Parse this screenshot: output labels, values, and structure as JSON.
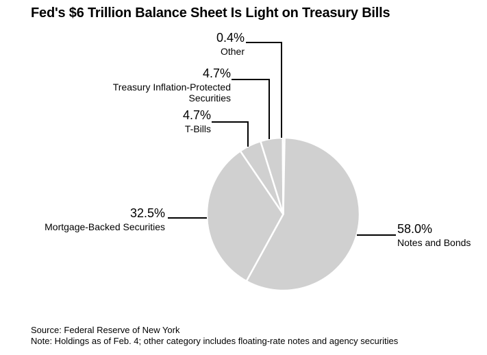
{
  "chart": {
    "title": "Fed's $6 Trillion Balance Sheet Is Light on Treasury Bills",
    "source_line": "Source: Federal Reserve of New York",
    "note_line": "Note: Holdings as of Feb. 4; other category includes floating-rate notes and agency securities"
  },
  "chart_data": {
    "type": "pie",
    "title": "Fed's $6 Trillion Balance Sheet Is Light on Treasury Bills",
    "unit": "%",
    "start_angle_deg": 0,
    "direction": "clockwise",
    "slices": [
      {
        "label": "Notes and Bonds",
        "value": 58.0,
        "display": "58.0%"
      },
      {
        "label": "Mortgage-Backed Securities",
        "value": 32.5,
        "display": "32.5%"
      },
      {
        "label": "T-Bills",
        "value": 4.7,
        "display": "4.7%"
      },
      {
        "label": "Treasury Inflation-Protected Securities",
        "value": 4.7,
        "display": "4.7%",
        "label_lines": [
          "Treasury Inflation-Protected",
          "Securities"
        ]
      },
      {
        "label": "Other",
        "value": 0.4,
        "display": "0.4%"
      }
    ],
    "colors": {
      "slice_fill": "#d0d0d0",
      "separator": "#ffffff",
      "leader_line": "#000000",
      "text": "#000000"
    },
    "legend": "none",
    "annotation_style": "external callout labels with elbow leader lines",
    "source": "Source: Federal Reserve of New York",
    "note": "Note: Holdings as of Feb. 4; other category includes floating-rate notes and agency securities"
  }
}
